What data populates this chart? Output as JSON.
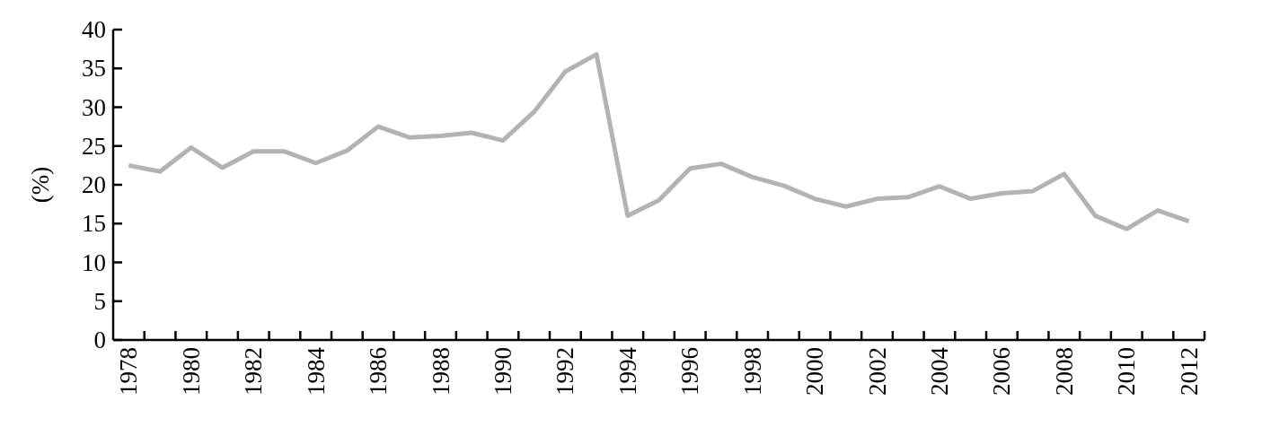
{
  "chart_data": {
    "type": "line",
    "ylabel": "(%)",
    "categories": [
      "1978",
      null,
      "1980",
      null,
      "1982",
      null,
      "1984",
      null,
      "1986",
      null,
      "1988",
      null,
      "1990",
      null,
      "1992",
      null,
      "1994",
      null,
      "1996",
      null,
      "1998",
      null,
      "2000",
      null,
      "2002",
      null,
      "2004",
      null,
      "2006",
      null,
      "2008",
      null,
      "2010",
      null,
      "2012"
    ],
    "values": [
      22.5,
      21.7,
      24.8,
      22.2,
      24.3,
      24.3,
      22.8,
      24.4,
      27.5,
      26.1,
      26.3,
      26.7,
      25.7,
      29.4,
      34.6,
      36.8,
      16.0,
      18.0,
      22.1,
      22.7,
      21.0,
      19.9,
      18.2,
      17.2,
      18.2,
      18.4,
      19.8,
      18.2,
      18.9,
      19.2,
      21.4,
      16.0,
      14.3,
      16.7,
      15.3
    ],
    "color": "#b3b3b3",
    "ylim": [
      0,
      40
    ],
    "yticks": [
      0,
      5,
      10,
      15,
      20,
      25,
      30,
      35,
      40
    ],
    "marker": "none",
    "line_style": "solid"
  }
}
